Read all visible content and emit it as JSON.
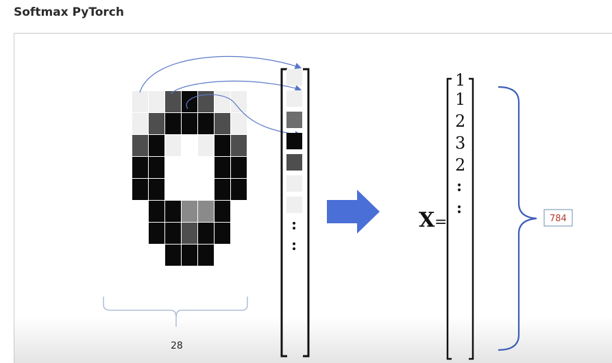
{
  "title": "Softmax PyTorch",
  "width_label": "28",
  "vector_values": [
    "1",
    "1",
    "2",
    "3",
    "2"
  ],
  "dots": ":",
  "x_label": "X",
  "equals": "=",
  "size_label": "784",
  "colors": {
    "arrow_blue": "#4a6fd6",
    "brace_blue": "#3d5db8",
    "size_box_border": "#6b8fb5",
    "size_text": "#b03a2e"
  }
}
